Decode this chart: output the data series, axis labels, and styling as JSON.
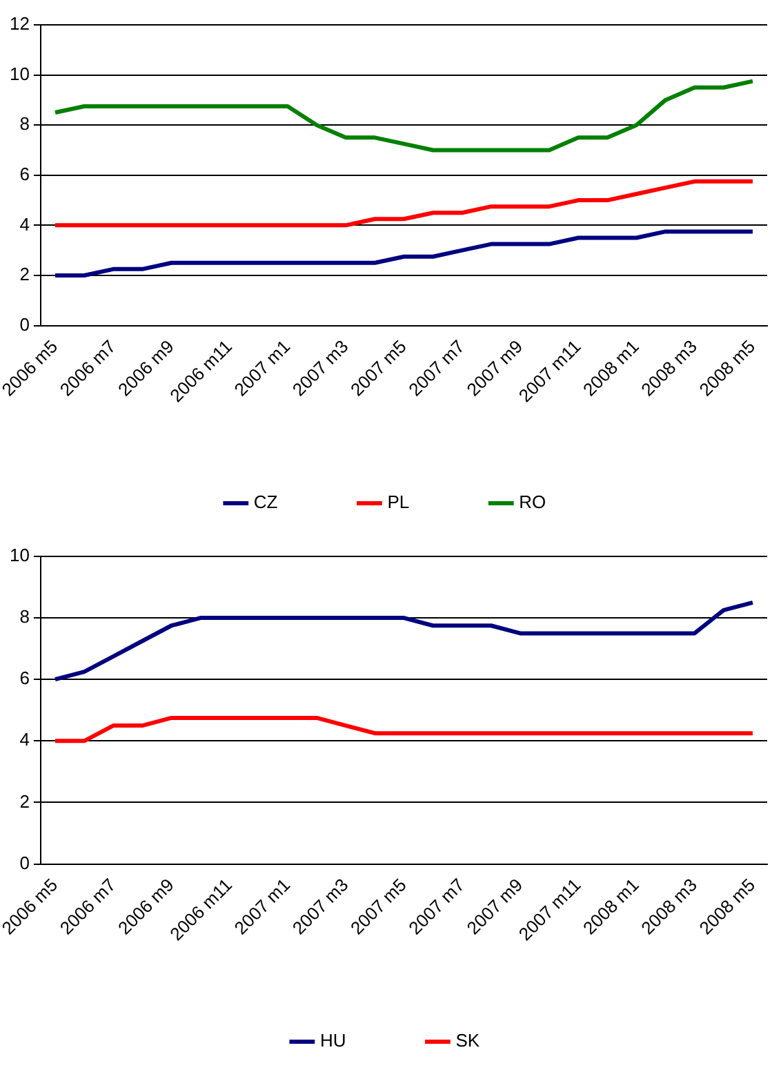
{
  "chart_data": [
    {
      "type": "line",
      "categories": [
        "2006 m5",
        null,
        "2006 m7",
        null,
        "2006 m9",
        null,
        "2006 m11",
        null,
        "2007 m1",
        null,
        "2007 m3",
        null,
        "2007 m5",
        null,
        "2007 m7",
        null,
        "2007 m9",
        null,
        "2007 m11",
        null,
        "2008 m1",
        null,
        "2008 m3",
        null,
        "2008 m5"
      ],
      "series": [
        {
          "name": "CZ",
          "color": "#000080",
          "values": [
            2,
            2,
            2.25,
            2.25,
            2.5,
            2.5,
            2.5,
            2.5,
            2.5,
            2.5,
            2.5,
            2.5,
            2.75,
            2.75,
            3,
            3.25,
            3.25,
            3.25,
            3.5,
            3.5,
            3.5,
            3.75,
            3.75,
            3.75,
            3.75
          ]
        },
        {
          "name": "PL",
          "color": "#ff0000",
          "values": [
            4,
            4,
            4,
            4,
            4,
            4,
            4,
            4,
            4,
            4,
            4,
            4.25,
            4.25,
            4.5,
            4.5,
            4.75,
            4.75,
            4.75,
            5,
            5,
            5.25,
            5.5,
            5.75,
            5.75,
            5.75
          ]
        },
        {
          "name": "RO",
          "color": "#008000",
          "values": [
            8.5,
            8.75,
            8.75,
            8.75,
            8.75,
            8.75,
            8.75,
            8.75,
            8.75,
            8,
            7.5,
            7.5,
            7.25,
            7,
            7,
            7,
            7,
            7,
            7.5,
            7.5,
            8,
            9,
            9.5,
            9.5,
            9.75
          ]
        }
      ],
      "ylim": [
        0,
        12
      ],
      "yticks": [
        0,
        2,
        4,
        6,
        8,
        10,
        12
      ],
      "grid": "y",
      "legend": "bottom",
      "marker": "none",
      "line_style": "solid"
    },
    {
      "type": "line",
      "categories": [
        "2006 m5",
        null,
        "2006 m7",
        null,
        "2006 m9",
        null,
        "2006 m11",
        null,
        "2007 m1",
        null,
        "2007 m3",
        null,
        "2007 m5",
        null,
        "2007 m7",
        null,
        "2007 m9",
        null,
        "2007 m11",
        null,
        "2008 m1",
        null,
        "2008 m3",
        null,
        "2008 m5"
      ],
      "series": [
        {
          "name": "HU",
          "color": "#000080",
          "values": [
            6,
            6.25,
            6.75,
            7.25,
            7.75,
            8,
            8,
            8,
            8,
            8,
            8,
            8,
            8,
            7.75,
            7.75,
            7.75,
            7.5,
            7.5,
            7.5,
            7.5,
            7.5,
            7.5,
            7.5,
            8.25,
            8.5
          ]
        },
        {
          "name": "SK",
          "color": "#ff0000",
          "values": [
            4,
            4,
            4.5,
            4.5,
            4.75,
            4.75,
            4.75,
            4.75,
            4.75,
            4.75,
            4.5,
            4.25,
            4.25,
            4.25,
            4.25,
            4.25,
            4.25,
            4.25,
            4.25,
            4.25,
            4.25,
            4.25,
            4.25,
            4.25,
            4.25
          ]
        }
      ],
      "ylim": [
        0,
        10
      ],
      "yticks": [
        0,
        2,
        4,
        6,
        8,
        10
      ],
      "grid": "y",
      "legend": "bottom",
      "marker": "none",
      "line_style": "solid"
    }
  ]
}
